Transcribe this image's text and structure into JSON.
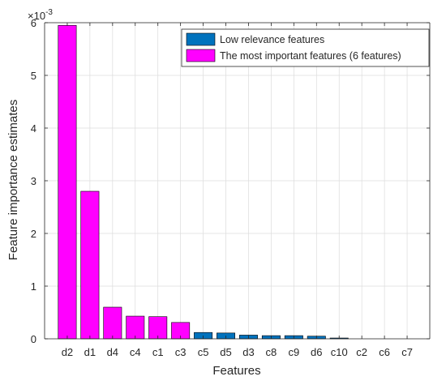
{
  "chart_data": {
    "type": "bar",
    "title": "",
    "xlabel": "Features",
    "ylabel": "Feature importance estimates",
    "y_exponent_label": "×10",
    "y_exponent_power": "-3",
    "ylim": [
      0,
      6
    ],
    "yticks": [
      "0",
      "1",
      "2",
      "3",
      "4",
      "5",
      "6"
    ],
    "grid": true,
    "legend_position": "top-right",
    "categories": [
      "d2",
      "d1",
      "d4",
      "c4",
      "c1",
      "c3",
      "c5",
      "d5",
      "d3",
      "c8",
      "c9",
      "d6",
      "c10",
      "c2",
      "c6",
      "c7"
    ],
    "series": [
      {
        "name": "Low relevance features",
        "color": "#0072BD",
        "values": [
          null,
          null,
          null,
          null,
          null,
          null,
          0.12,
          0.11,
          0.07,
          0.06,
          0.06,
          0.05,
          0.015,
          0.0,
          0.0,
          0.0
        ]
      },
      {
        "name": "The most important features (6 features)",
        "color": "#FF00FF",
        "values": [
          5.95,
          2.8,
          0.6,
          0.43,
          0.42,
          0.31,
          null,
          null,
          null,
          null,
          null,
          null,
          null,
          null,
          null,
          null
        ]
      }
    ]
  }
}
